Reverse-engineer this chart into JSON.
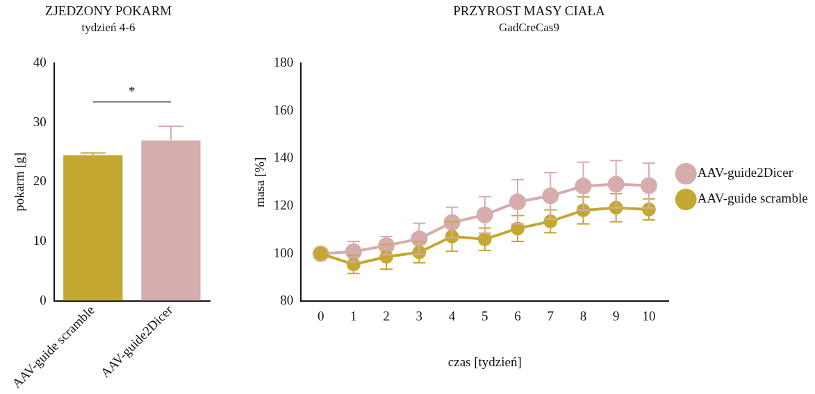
{
  "chart_data": [
    {
      "type": "bar",
      "title": "ZJEDZONY POKARM",
      "subtitle": "tydzień 4-6",
      "ylabel": "pokarm [g]",
      "categories": [
        "AAV-guide scramble",
        "AAV-guide2Dicer"
      ],
      "values": [
        24.5,
        27.0
      ],
      "colors": [
        "#c4a832",
        "#d6acac"
      ],
      "errors": [
        [
          24.5,
          24.9
        ],
        [
          27.0,
          29.4
        ]
      ],
      "ylim": [
        0,
        40
      ],
      "yticks": [
        0,
        10,
        20,
        30,
        40
      ],
      "annotations": [
        "*"
      ]
    },
    {
      "type": "line",
      "title": "PRZYROST MASY CIAŁA",
      "subtitle": "GadCreCas9",
      "xlabel": "czas [tydzień]",
      "ylabel": "masa [%]",
      "x": [
        0,
        1,
        2,
        3,
        4,
        5,
        6,
        7,
        8,
        9,
        10
      ],
      "xlim": [
        -0.6,
        10.6
      ],
      "xticks": [
        0,
        1,
        2,
        3,
        4,
        5,
        6,
        7,
        8,
        9,
        10
      ],
      "ylim": [
        80,
        180
      ],
      "yticks": [
        80,
        100,
        120,
        140,
        160,
        180
      ],
      "marker": "circle",
      "legend": "right",
      "series": [
        {
          "name": "AAV-guide2Dicer",
          "color": "#d6acac",
          "values": [
            100,
            100.9,
            103.4,
            106.3,
            113.1,
            116.3,
            121.8,
            124.3,
            128.4,
            129.2,
            128.6
          ],
          "errors": [
            null,
            4.3,
            3.8,
            6.5,
            6.4,
            7.7,
            9.3,
            9.8,
            10.1,
            9.9,
            9.4
          ]
        },
        {
          "name": "AAV-guide scramble",
          "color": "#c4a832",
          "values": [
            100,
            95.5,
            98.7,
            100.6,
            107.2,
            106.1,
            110.6,
            113.6,
            118.2,
            119.3,
            118.6
          ],
          "errors": [
            null,
            3.8,
            5.2,
            4.4,
            6.2,
            4.7,
            5.4,
            4.8,
            5.7,
            5.9,
            4.4
          ]
        }
      ]
    }
  ]
}
